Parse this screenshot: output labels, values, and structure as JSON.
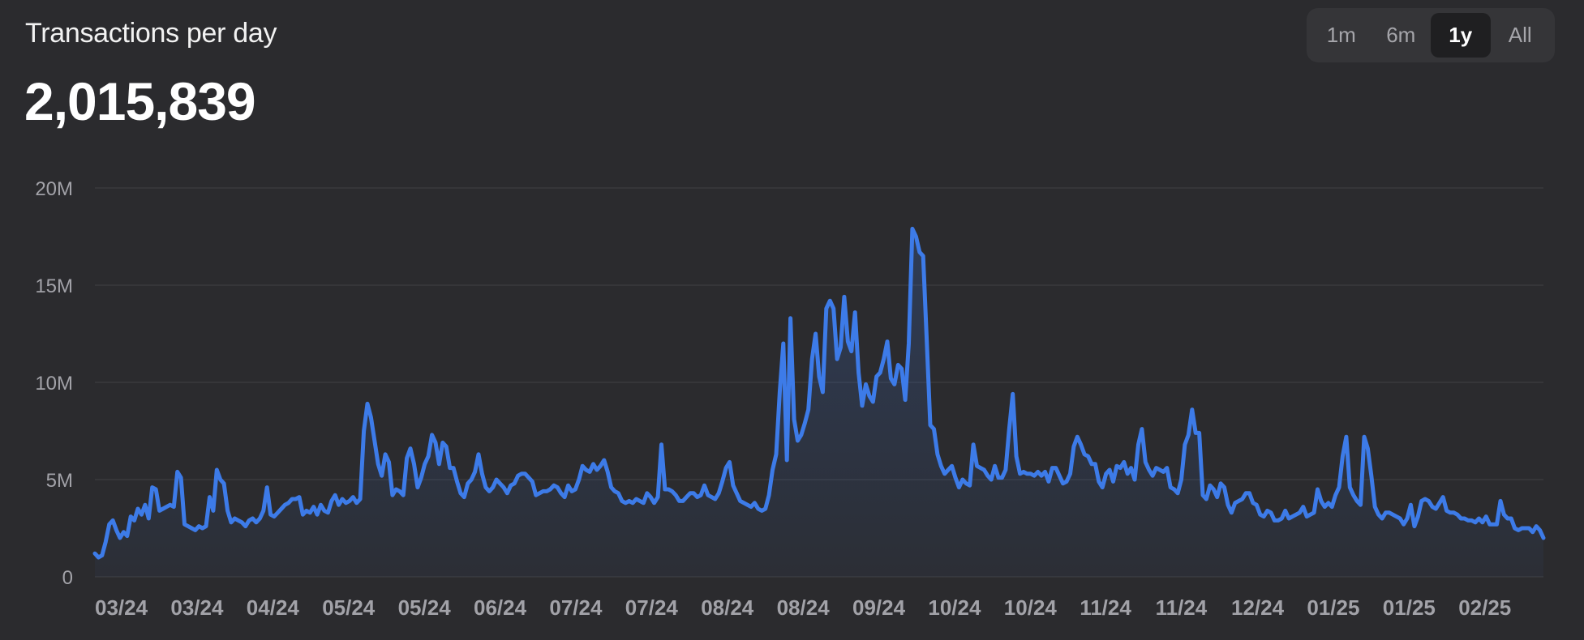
{
  "header": {
    "title": "Transactions per day",
    "value": "2,015,839"
  },
  "range_selector": {
    "options": [
      "1m",
      "6m",
      "1y",
      "All"
    ],
    "selected": "1y"
  },
  "colors": {
    "background": "#2b2b2e",
    "line": "#3d7be8",
    "gridline": "#3c3c40",
    "tick_label": "#a2a2a8"
  },
  "chart_data": {
    "type": "area",
    "title": "Transactions per day",
    "xlabel": "",
    "ylabel": "",
    "ylim": [
      0,
      20000000
    ],
    "y_ticks": [
      0,
      5000000,
      10000000,
      15000000,
      20000000
    ],
    "y_tick_labels": [
      "0",
      "5M",
      "10M",
      "15M",
      "20M"
    ],
    "x_tick_labels": [
      "03/24",
      "03/24",
      "04/24",
      "05/24",
      "05/24",
      "06/24",
      "07/24",
      "07/24",
      "08/24",
      "08/24",
      "09/24",
      "10/24",
      "10/24",
      "11/24",
      "11/24",
      "12/24",
      "01/25",
      "01/25",
      "02/25"
    ],
    "grid": true,
    "legend": "none",
    "series": [
      {
        "values": [
          1.2,
          1.0,
          1.1,
          1.8,
          2.7,
          2.9,
          2.4,
          2.0,
          2.3,
          2.1,
          3.1,
          2.9,
          3.5,
          3.2,
          3.7,
          3.0,
          4.6,
          4.5,
          3.4,
          3.5,
          3.6,
          3.7,
          3.6,
          5.4,
          5.1,
          2.7,
          2.6,
          2.5,
          2.4,
          2.6,
          2.5,
          2.6,
          4.1,
          3.4,
          5.5,
          5.0,
          4.8,
          3.4,
          2.8,
          3.0,
          2.9,
          2.8,
          2.6,
          2.9,
          3.0,
          2.8,
          3.0,
          3.4,
          4.6,
          3.2,
          3.1,
          3.3,
          3.5,
          3.7,
          3.8,
          4.0,
          4.0,
          4.1,
          3.2,
          3.4,
          3.3,
          3.6,
          3.2,
          3.7,
          3.4,
          3.3,
          3.9,
          4.2,
          3.7,
          4.0,
          3.8,
          3.9,
          4.1,
          3.8,
          4.0,
          7.5,
          8.9,
          8.2,
          7.0,
          5.8,
          5.2,
          6.3,
          5.9,
          4.2,
          4.5,
          4.4,
          4.2,
          6.1,
          6.6,
          5.8,
          4.6,
          5.1,
          5.8,
          6.2,
          7.3,
          6.9,
          5.8,
          6.9,
          6.7,
          5.6,
          5.6,
          4.9,
          4.3,
          4.1,
          4.8,
          5.0,
          5.4,
          6.3,
          5.3,
          4.6,
          4.4,
          4.6,
          5.0,
          4.8,
          4.6,
          4.3,
          4.7,
          4.8,
          5.2,
          5.3,
          5.3,
          5.1,
          4.9,
          4.2,
          4.3,
          4.4,
          4.4,
          4.5,
          4.7,
          4.6,
          4.3,
          4.1,
          4.7,
          4.4,
          4.5,
          5.0,
          5.7,
          5.5,
          5.4,
          5.8,
          5.5,
          5.7,
          6.0,
          5.4,
          4.6,
          4.4,
          4.3,
          3.9,
          3.8,
          3.9,
          3.8,
          4.0,
          3.9,
          3.8,
          4.3,
          4.1,
          3.8,
          4.1,
          6.8,
          4.5,
          4.5,
          4.4,
          4.2,
          3.9,
          3.9,
          4.1,
          4.3,
          4.3,
          4.1,
          4.2,
          4.7,
          4.2,
          4.1,
          4.0,
          4.3,
          4.9,
          5.6,
          5.9,
          4.7,
          4.3,
          3.9,
          3.8,
          3.7,
          3.6,
          3.8,
          3.5,
          3.4,
          3.5,
          4.2,
          5.5,
          6.3,
          9.5,
          12.0,
          6.0,
          13.3,
          8.1,
          7.0,
          7.3,
          7.9,
          8.6,
          11.2,
          12.5,
          10.3,
          9.5,
          13.8,
          14.2,
          13.8,
          11.2,
          11.8,
          14.4,
          12.1,
          11.6,
          13.6,
          10.5,
          8.8,
          9.9,
          9.3,
          9.0,
          10.3,
          10.5,
          11.2,
          12.1,
          10.2,
          9.9,
          10.9,
          10.7,
          9.1,
          12.0,
          17.9,
          17.5,
          16.7,
          16.5,
          12.2,
          7.8,
          7.6,
          6.3,
          5.7,
          5.3,
          5.5,
          5.7,
          5.1,
          4.6,
          5.0,
          4.8,
          4.7,
          6.8,
          5.7,
          5.6,
          5.5,
          5.2,
          5.0,
          5.7,
          5.1,
          5.1,
          5.5,
          7.6,
          9.4,
          6.2,
          5.3,
          5.4,
          5.3,
          5.3,
          5.2,
          5.4,
          5.2,
          5.4,
          4.9,
          5.6,
          5.6,
          5.2,
          4.8,
          4.9,
          5.3,
          6.7,
          7.2,
          6.8,
          6.3,
          6.2,
          5.8,
          5.8,
          4.9,
          4.6,
          5.3,
          5.5,
          4.9,
          5.7,
          5.6,
          5.9,
          5.3,
          5.6,
          5.0,
          6.8,
          7.6,
          5.9,
          5.5,
          5.2,
          5.6,
          5.5,
          5.4,
          5.6,
          4.6,
          4.5,
          4.3,
          5.0,
          6.8,
          7.3,
          8.6,
          7.4,
          7.4,
          4.2,
          4.0,
          4.7,
          4.5,
          4.1,
          4.8,
          4.6,
          3.7,
          3.3,
          3.8,
          3.9,
          4.0,
          4.3,
          4.3,
          3.8,
          3.7,
          3.2,
          3.1,
          3.4,
          3.3,
          2.9,
          2.9,
          3.0,
          3.4,
          3.0,
          3.1,
          3.2,
          3.3,
          3.6,
          3.1,
          3.2,
          3.3,
          4.5,
          3.9,
          3.6,
          3.8,
          3.6,
          4.2,
          4.6,
          6.2,
          7.2,
          4.6,
          4.2,
          3.9,
          3.7,
          7.2,
          6.6,
          5.2,
          3.6,
          3.2,
          3.0,
          3.3,
          3.3,
          3.2,
          3.1,
          3.0,
          2.7,
          3.0,
          3.7,
          2.6,
          3.1,
          3.9,
          4.0,
          3.9,
          3.6,
          3.5,
          3.8,
          4.1,
          3.4,
          3.3,
          3.3,
          3.2,
          3.0,
          3.0,
          2.9,
          2.9,
          2.8,
          3.0,
          2.8,
          3.1,
          2.7,
          2.7,
          2.7,
          3.9,
          3.2,
          3.0,
          3.0,
          2.5,
          2.4,
          2.5,
          2.5,
          2.5,
          2.3,
          2.6,
          2.4,
          2.0
        ]
      }
    ],
    "y_unit_note": "values in millions"
  }
}
